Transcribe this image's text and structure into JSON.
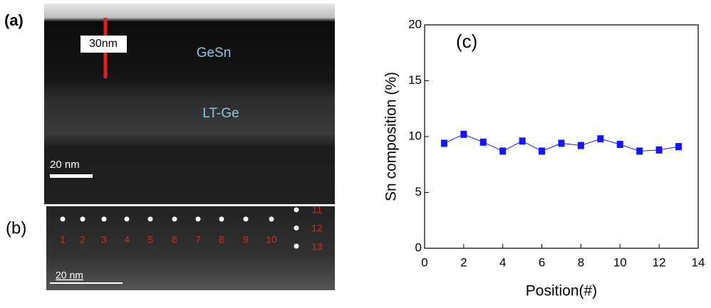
{
  "panels": {
    "a": {
      "label": "(a)",
      "layers": [
        "GeSn",
        "LT-Ge"
      ],
      "thickness": "30nm",
      "scale_bar": "20 nm"
    },
    "b": {
      "label": "(b)",
      "points": [
        "1",
        "2",
        "3",
        "4",
        "5",
        "6",
        "7",
        "8",
        "9",
        "10",
        "11",
        "12",
        "13"
      ],
      "scale_bar": "20 nm"
    }
  },
  "chart_data": {
    "type": "line",
    "annotation": "(c)",
    "x_label": "Position(#)",
    "y_label": "Sn composition (%)",
    "x": [
      1,
      2,
      3,
      4,
      5,
      6,
      7,
      8,
      9,
      10,
      11,
      12,
      13
    ],
    "series": [
      {
        "color": "#1414ff",
        "values": [
          9.4,
          10.2,
          9.5,
          8.7,
          9.6,
          8.7,
          9.4,
          9.2,
          9.8,
          9.3,
          8.7,
          8.8,
          9.1
        ]
      }
    ],
    "xlim": [
      0,
      14
    ],
    "xticks": [
      0,
      2,
      4,
      6,
      8,
      10,
      12,
      14
    ],
    "ylim": [
      0,
      20
    ],
    "yticks": [
      0,
      5,
      10,
      15,
      20
    ]
  }
}
